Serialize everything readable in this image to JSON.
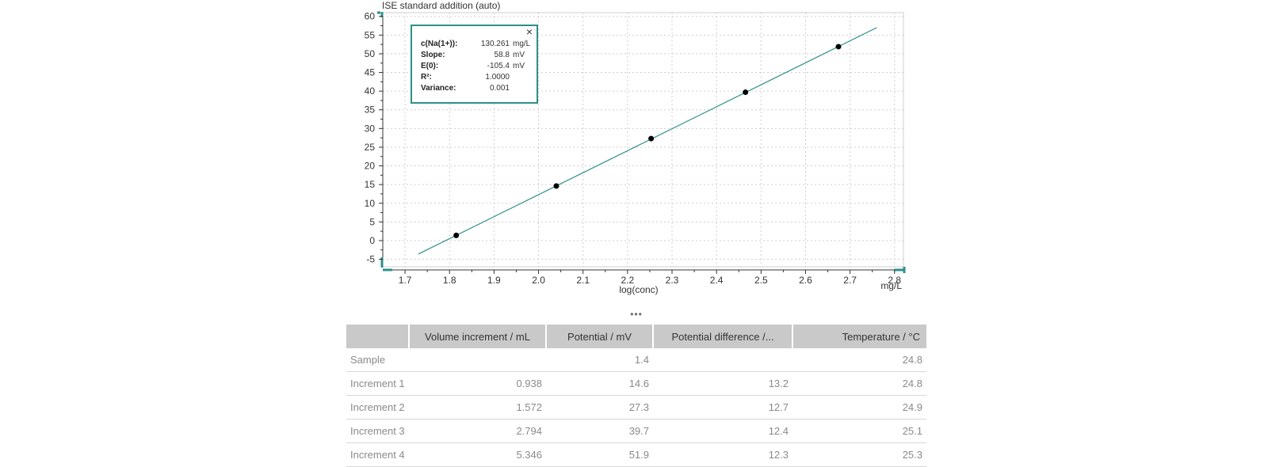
{
  "chart_data": {
    "type": "scatter",
    "title": "ISE standard addition (auto)",
    "xlabel": "log(conc)",
    "xunit": "mg/L",
    "xlim": [
      1.65,
      2.82
    ],
    "ylim": [
      -7,
      61
    ],
    "xticks": [
      1.7,
      1.8,
      1.9,
      2.0,
      2.1,
      2.2,
      2.3,
      2.4,
      2.5,
      2.6,
      2.7,
      2.8
    ],
    "xtick_labels": [
      "1.7",
      "1.8",
      "1.9",
      "2.0",
      "2.1",
      "2.2",
      "2.3",
      "2.4",
      "2.5",
      "2.6",
      "2.7",
      "2.8"
    ],
    "yticks": [
      -5,
      0,
      5,
      10,
      15,
      20,
      25,
      30,
      35,
      40,
      45,
      50,
      55,
      60
    ],
    "ytick_labels": [
      "-5",
      "0",
      "5",
      "10",
      "15",
      "20",
      "25",
      "30",
      "35",
      "40",
      "45",
      "50",
      "55",
      "60"
    ],
    "grid": true,
    "series": [
      {
        "type": "scatter",
        "color": "#000000",
        "x": [
          1.815,
          2.04,
          2.253,
          2.465,
          2.674
        ],
        "y": [
          1.4,
          14.6,
          27.3,
          39.7,
          51.9
        ]
      },
      {
        "type": "line",
        "color": "#2f8f88",
        "x": [
          1.73,
          2.76
        ],
        "y": [
          -3.6,
          57.0
        ]
      }
    ]
  },
  "info_box": {
    "close_symbol": "×",
    "rows": [
      {
        "label": "c(Na(1+)):",
        "value": "130.261",
        "unit": "mg/L"
      },
      {
        "label": "Slope:",
        "value": "58.8",
        "unit": "mV"
      },
      {
        "label": "E(0):",
        "value": "-105.4",
        "unit": "mV"
      },
      {
        "label": "R²:",
        "value": "1.0000",
        "unit": ""
      },
      {
        "label": "Variance:",
        "value": "0.001",
        "unit": ""
      }
    ]
  },
  "splitter": "•••",
  "table": {
    "headers": [
      "",
      "Volume increment / mL",
      "Potential / mV",
      "Potential difference /...",
      "Temperature / °C"
    ],
    "rows": [
      [
        "Sample",
        "",
        "1.4",
        "",
        "24.8"
      ],
      [
        "Increment 1",
        "0.938",
        "14.6",
        "13.2",
        "24.8"
      ],
      [
        "Increment 2",
        "1.572",
        "27.3",
        "12.7",
        "24.9"
      ],
      [
        "Increment 3",
        "2.794",
        "39.7",
        "12.4",
        "25.1"
      ],
      [
        "Increment 4",
        "5.346",
        "51.9",
        "12.3",
        "25.3"
      ]
    ]
  }
}
